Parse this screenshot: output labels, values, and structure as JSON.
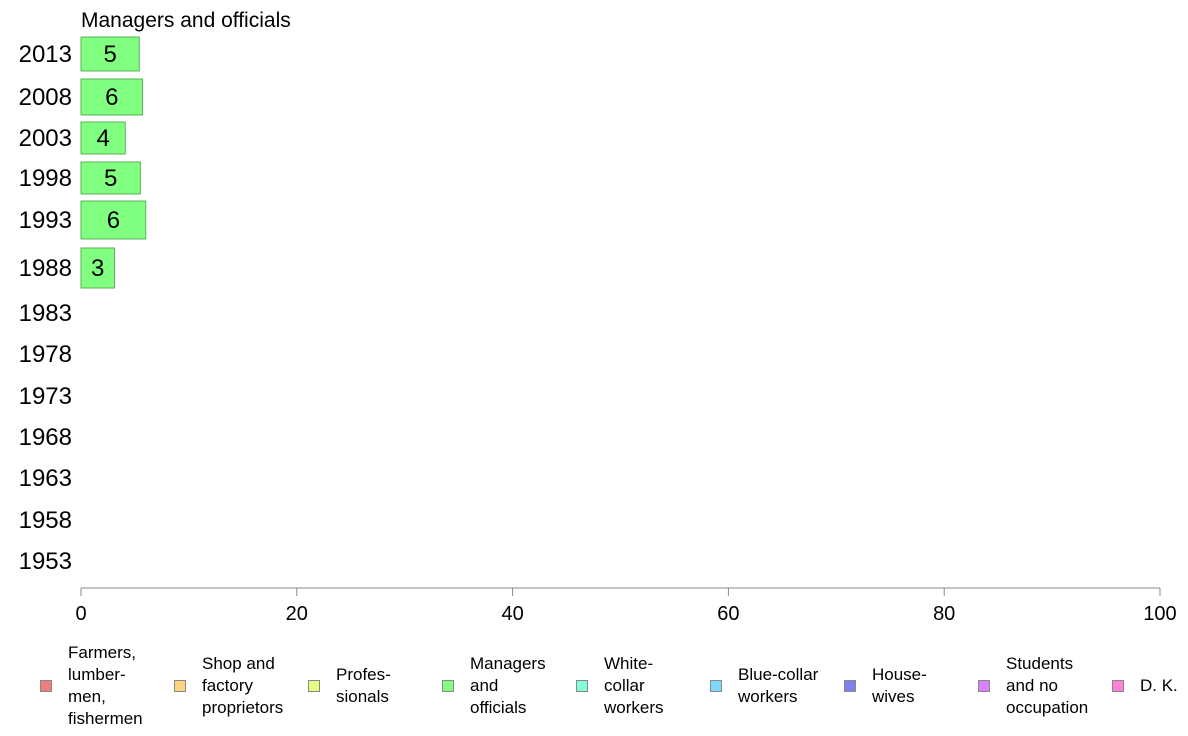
{
  "chart_data": {
    "type": "bar",
    "orientation": "horizontal",
    "title": "Managers and officials",
    "xlabel": "",
    "ylabel": "",
    "xlim": [
      0,
      100
    ],
    "xticks": [
      0,
      20,
      40,
      60,
      80,
      100
    ],
    "categories": [
      "2013",
      "2008",
      "2003",
      "1998",
      "1993",
      "1988",
      "1983",
      "1978",
      "1973",
      "1968",
      "1963",
      "1958",
      "1953"
    ],
    "series": [
      {
        "name": "Managers and officials",
        "color": "#80ff80",
        "values": [
          5.4,
          5.7,
          4.1,
          5.5,
          6.0,
          3.1,
          null,
          null,
          null,
          null,
          null,
          null,
          null
        ],
        "labels": [
          "5",
          "6",
          "4",
          "5",
          "6",
          "3",
          "",
          "",
          "",
          "",
          "",
          "",
          ""
        ]
      }
    ],
    "grid": false,
    "legend_position": "bottom"
  },
  "legend": [
    {
      "label": "Farmers,\nlumber-\nmen,\nfishermen",
      "color": "#f08080"
    },
    {
      "label": "Shop and\nfactory\nproprietors",
      "color": "#ffd480"
    },
    {
      "label": "Profes-\nsionals",
      "color": "#e4ff80"
    },
    {
      "label": "Managers\nand\nofficials",
      "color": "#80ff80"
    },
    {
      "label": "White-\ncollar\nworkers",
      "color": "#80ffd8"
    },
    {
      "label": "Blue-collar\nworkers",
      "color": "#80d8ff"
    },
    {
      "label": "House-\nwives",
      "color": "#8080f0"
    },
    {
      "label": "Students\nand no\noccupation",
      "color": "#d880ff"
    },
    {
      "label": "D. K.",
      "color": "#ff80d8"
    }
  ]
}
